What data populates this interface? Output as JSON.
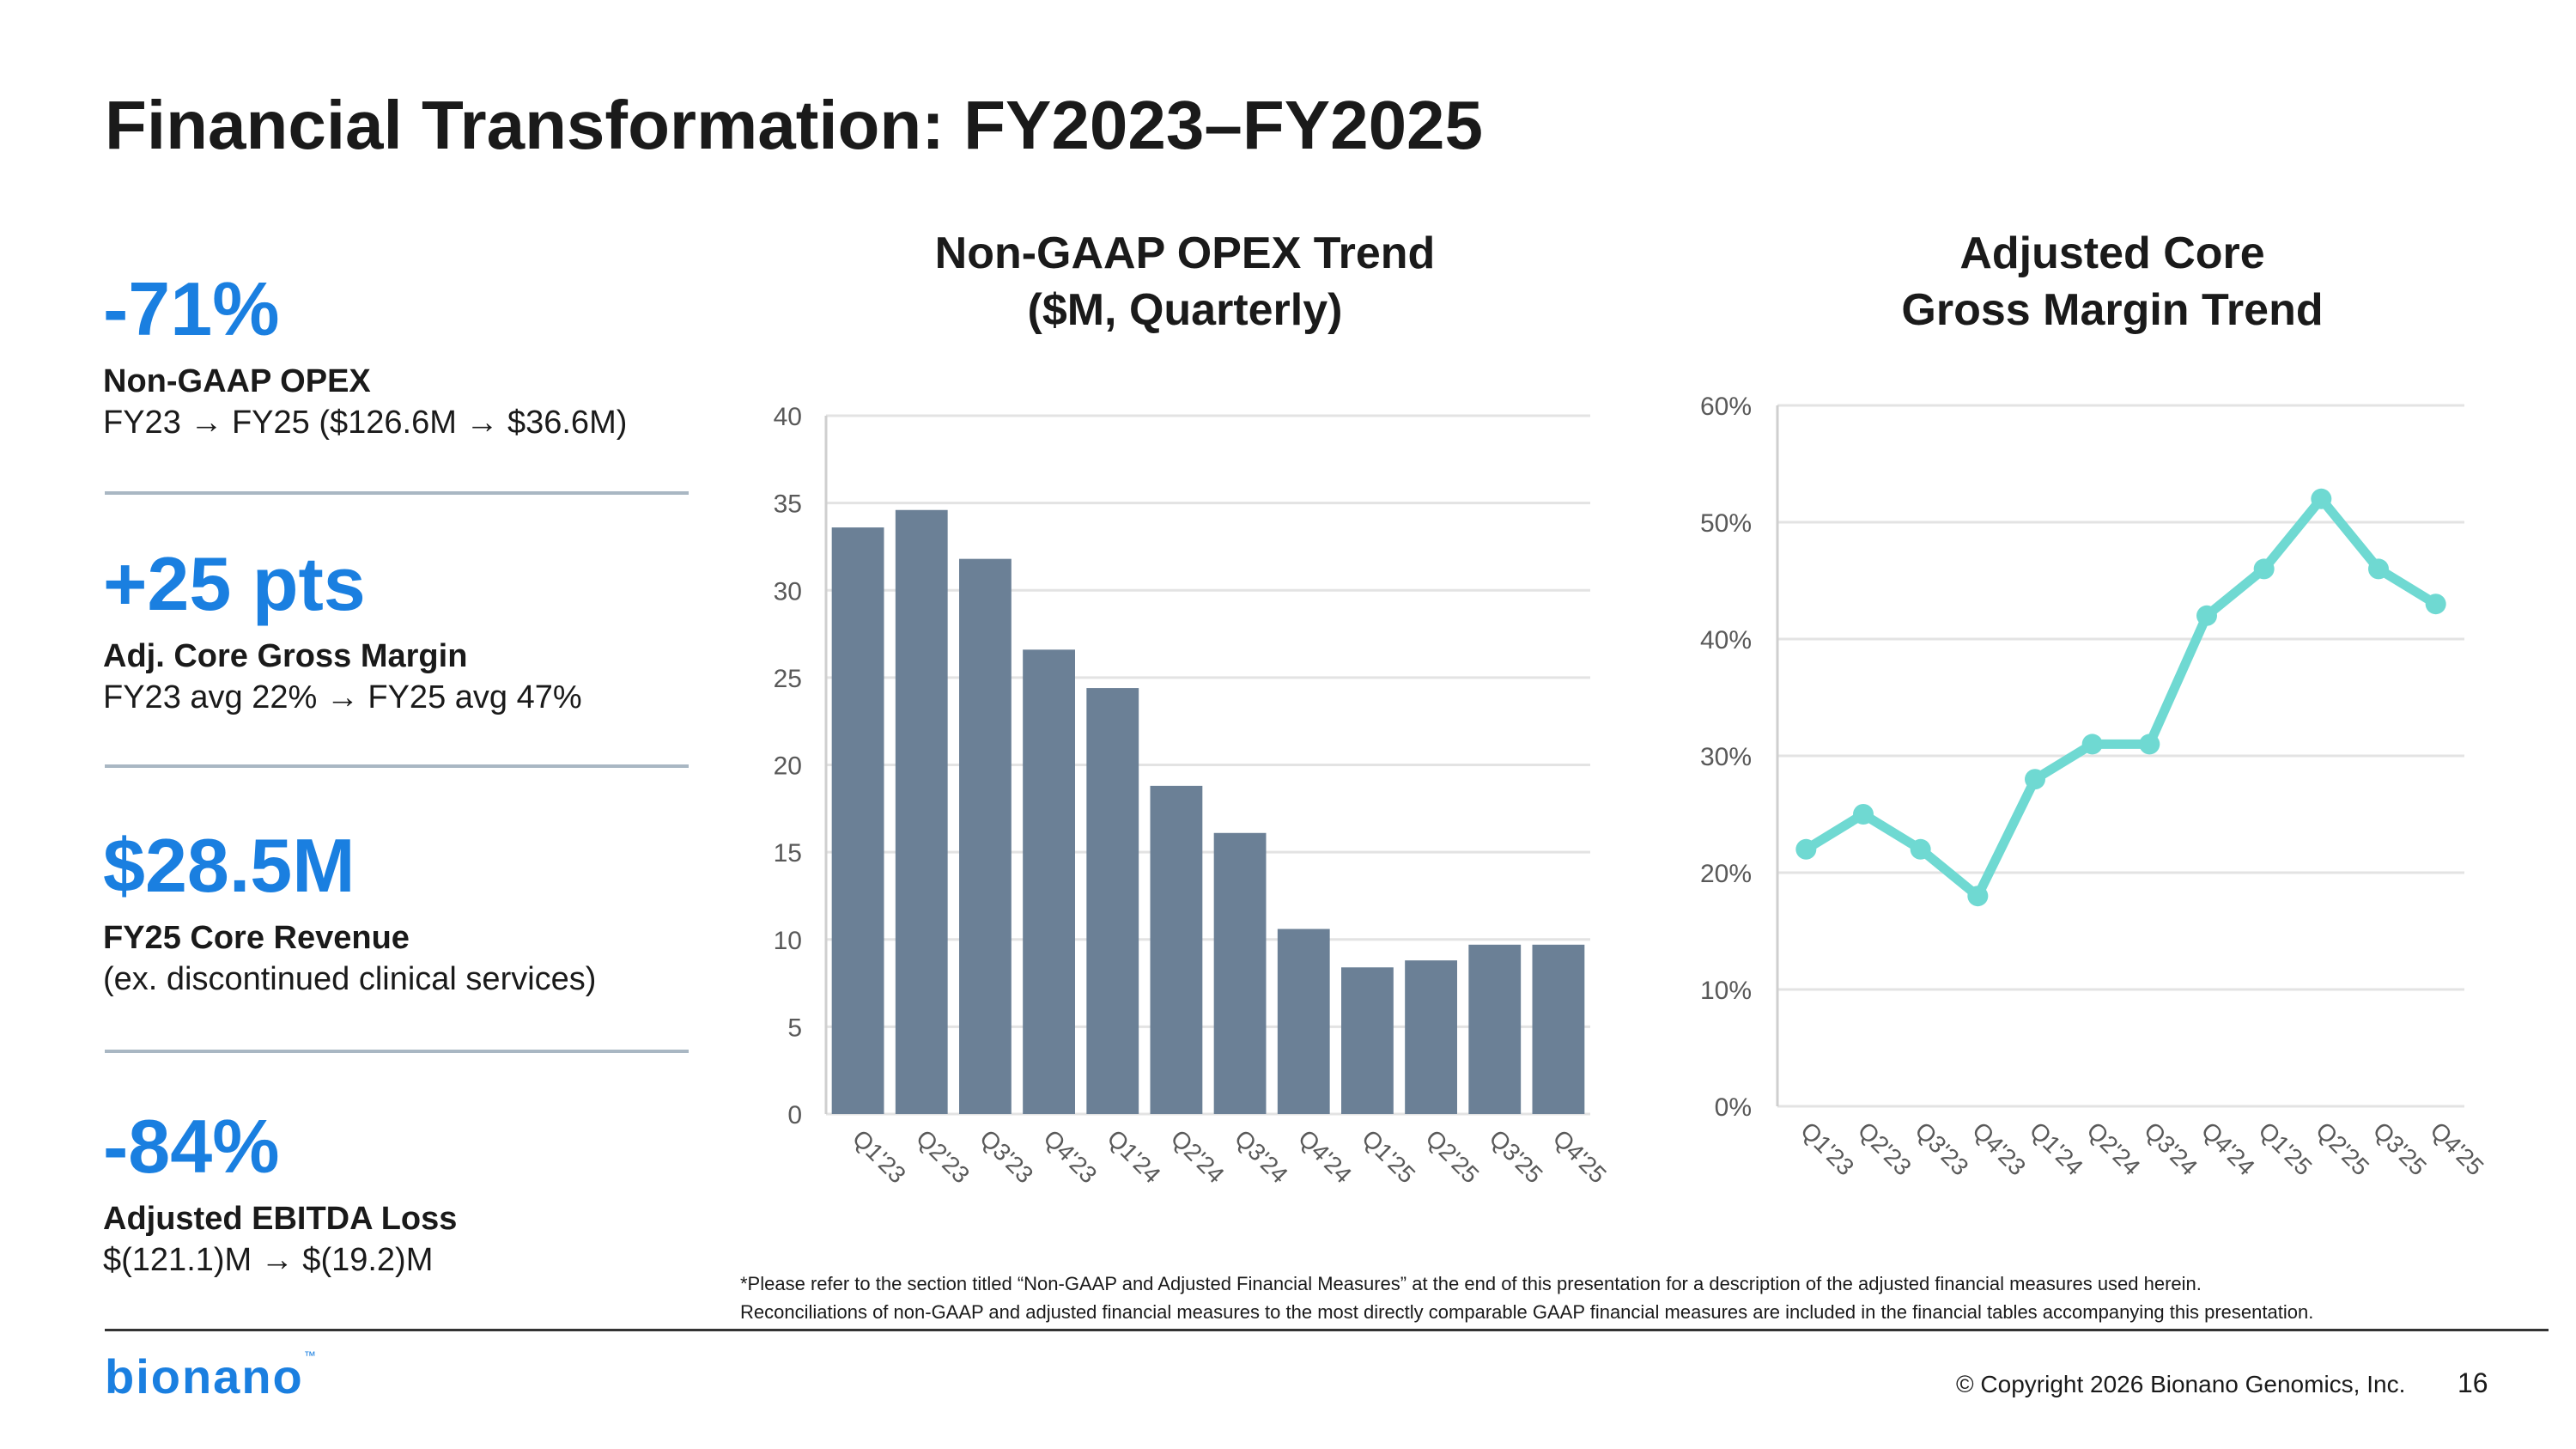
{
  "page": {
    "title": "Financial Transformation: FY2023–FY2025",
    "page_number": "16",
    "copyright": "© Copyright 2026 Bionano Genomics, Inc.",
    "logo_text": "bionano",
    "logo_mark": "™",
    "footnote_line1": "*Please refer to the section titled “Non-GAAP and Adjusted Financial Measures” at the end of this presentation for a description of the adjusted financial measures used herein.",
    "footnote_line2": "Reconciliations of non-GAAP and adjusted financial measures to the most directly comparable GAAP financial measures are included in the financial tables accompanying this presentation."
  },
  "kpis": [
    {
      "value": "-71%",
      "label": "Non-GAAP OPEX",
      "sub": "FY23 → FY25 ($126.6M → $36.6M)"
    },
    {
      "value": "+25 pts",
      "label": "Adj. Core Gross Margin",
      "sub": "FY23 avg 22% → FY25 avg 47%"
    },
    {
      "value": "$28.5M",
      "label": "FY25 Core Revenue",
      "sub": "(ex. discontinued clinical services)"
    },
    {
      "value": "-84%",
      "label": "Adjusted EBITDA Loss",
      "sub": "$(121.1)M → $(19.2)M"
    }
  ],
  "colors": {
    "accent": "#1a7fe0",
    "bar": "#6b8096",
    "line": "#6fd9d2",
    "grid": "#e3e3e3",
    "axis": "#cfcfcf",
    "tick_text": "#595959"
  },
  "chart_data": [
    {
      "type": "bar",
      "title_line1": "Non-GAAP OPEX Trend",
      "title_line2": "($M, Quarterly)",
      "categories": [
        "Q1'23",
        "Q2'23",
        "Q3'23",
        "Q4'23",
        "Q1'24",
        "Q2'24",
        "Q3'24",
        "Q4'24",
        "Q1'25",
        "Q2'25",
        "Q3'25",
        "Q4'25"
      ],
      "values": [
        33.6,
        34.6,
        31.8,
        26.6,
        24.4,
        18.8,
        16.1,
        10.6,
        8.4,
        8.8,
        9.7,
        9.7
      ],
      "ylim": [
        0,
        40
      ],
      "yticks": [
        0,
        5,
        10,
        15,
        20,
        25,
        30,
        35,
        40
      ],
      "ytick_labels": [
        "0",
        "5",
        "10",
        "15",
        "20",
        "25",
        "30",
        "35",
        "40"
      ],
      "grid": true,
      "legend": "none"
    },
    {
      "type": "line",
      "title_line1": "Adjusted Core",
      "title_line2": "Gross Margin Trend",
      "categories": [
        "Q1'23",
        "Q2'23",
        "Q3'23",
        "Q4'23",
        "Q1'24",
        "Q2'24",
        "Q3'24",
        "Q4'24",
        "Q1'25",
        "Q2'25",
        "Q3'25",
        "Q4'25"
      ],
      "values": [
        22,
        25,
        22,
        18,
        28,
        31,
        31,
        42,
        46,
        52,
        46,
        43
      ],
      "unit": "%",
      "ylim": [
        0,
        60
      ],
      "yticks": [
        0,
        10,
        20,
        30,
        40,
        50,
        60
      ],
      "ytick_labels": [
        "0%",
        "10%",
        "20%",
        "30%",
        "40%",
        "50%",
        "60%"
      ],
      "grid": true,
      "legend": "none"
    }
  ]
}
